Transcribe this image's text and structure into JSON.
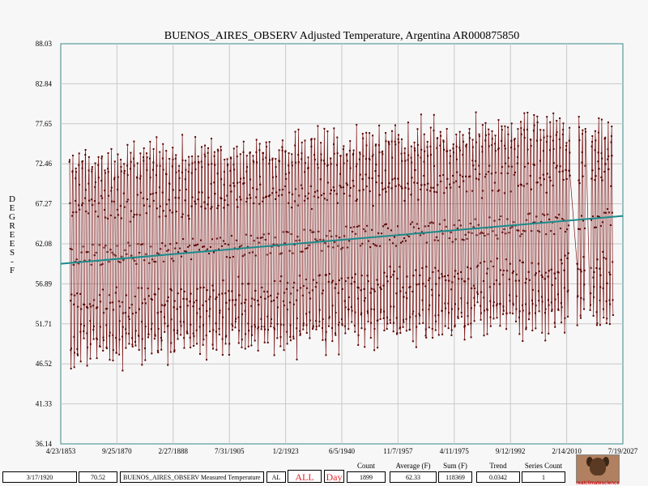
{
  "chart_data": {
    "type": "line",
    "title": "BUENOS_AIRES_OBSERV Adjusted Temperature, Argentina AR000875850",
    "ylabel_letters": [
      "D",
      "E",
      "G",
      "R",
      "E",
      "E",
      "S",
      "-",
      "F"
    ],
    "ylim": [
      36.14,
      88.03
    ],
    "yticks": [
      "88.03",
      "82.84",
      "77.65",
      "72.46",
      "67.27",
      "62.08",
      "56.89",
      "51.71",
      "46.52",
      "41.33",
      "36.14"
    ],
    "xlim": [
      "4/23/1853",
      "7/19/2027"
    ],
    "xticks": [
      "4/23/1853",
      "9/25/1870",
      "2/27/1888",
      "7/31/1905",
      "1/2/1923",
      "6/5/1940",
      "11/7/1957",
      "4/11/1975",
      "9/12/1992",
      "2/14/2010",
      "7/19/2027"
    ],
    "grid": true,
    "trend": {
      "start": [
        "4/23/1853",
        59.5
      ],
      "end": [
        "7/19/2027",
        65.7
      ]
    },
    "series": [
      {
        "color": "#7a1414",
        "note": "monthly mean temperatures (F), seasonal cycle; monthly values from Jan 1856 to Jun 2024 with gaps 2011-2013 and 2016-2017",
        "start_year": 1856,
        "end_year": 2024.5,
        "annual_mean_start": 60.3,
        "annual_mean_end": 65.3,
        "amplitude": 12.4,
        "gaps": [
          [
            2011.2,
            2013.3
          ],
          [
            2016.0,
            2017.4
          ]
        ]
      }
    ]
  },
  "footer": {
    "date_value": "3/17/1920",
    "temp_value": "70.52",
    "series_name": "BUENOS_AIRES_OBSERV Measured Temperature",
    "region_value": "AL",
    "all_button": "ALL",
    "day_button": "Day",
    "count_label": "Count",
    "count_value": "1899",
    "average_label": "Average (F)",
    "average_value": "62.33",
    "sum_label": "Sum (F)",
    "sum_value": "118369",
    "trend_label": "Trend",
    "trend_value": "0.0342",
    "series_count_label": "Series Count",
    "series_count_value": "1",
    "logo_caption": "realclimatescience"
  }
}
